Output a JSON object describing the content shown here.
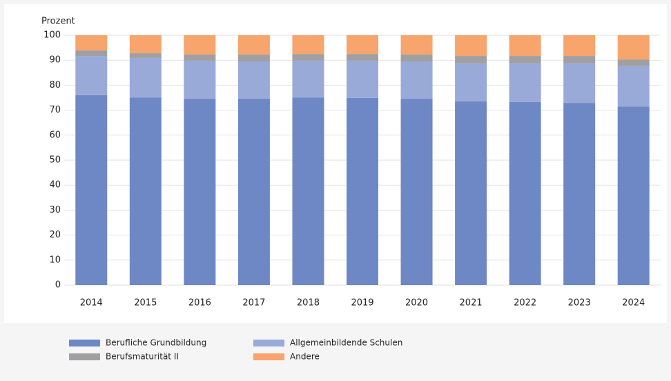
{
  "chart_data": {
    "type": "stacked_bar",
    "y_label": "Prozent",
    "categories": [
      "2014",
      "2015",
      "2016",
      "2017",
      "2018",
      "2019",
      "2020",
      "2021",
      "2022",
      "2023",
      "2024"
    ],
    "series": [
      {
        "name": "Berufliche Grundbildung",
        "color": "#6e88c6",
        "values": [
          76.0,
          75.1,
          74.6,
          74.6,
          75.1,
          74.9,
          74.6,
          73.5,
          73.2,
          72.9,
          71.5
        ]
      },
      {
        "name": "Allgemeinbildende Schulen",
        "color": "#9aaad8",
        "values": [
          15.7,
          15.8,
          15.2,
          14.9,
          14.7,
          14.9,
          14.9,
          15.2,
          15.5,
          15.8,
          16.1
        ]
      },
      {
        "name": "Berufsmaturität II",
        "color": "#a0a0a2",
        "values": [
          2.2,
          1.9,
          2.5,
          2.8,
          2.7,
          2.7,
          2.8,
          3.0,
          3.0,
          3.0,
          2.7
        ]
      },
      {
        "name": "Andere",
        "color": "#f7a46d",
        "values": [
          6.1,
          7.2,
          7.7,
          7.7,
          7.5,
          7.5,
          7.7,
          8.3,
          8.3,
          8.3,
          9.7
        ]
      }
    ],
    "ylim": [
      0,
      100
    ],
    "yticks": [
      0,
      10,
      20,
      30,
      40,
      50,
      60,
      70,
      80,
      90,
      100
    ],
    "grid": true
  }
}
